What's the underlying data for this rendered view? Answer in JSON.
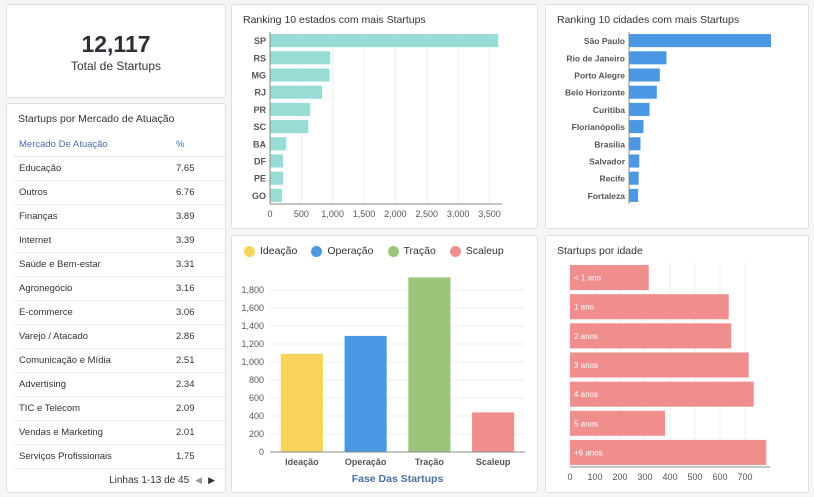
{
  "kpi": {
    "value": "12,117",
    "label": "Total de Startups"
  },
  "market_table": {
    "title": "Startups por Mercado de Atuação",
    "columns": [
      "Mercado De Atuação",
      "%"
    ],
    "rows": [
      [
        "Educação",
        "7.65"
      ],
      [
        "Outros",
        "6.76"
      ],
      [
        "Finanças",
        "3.89"
      ],
      [
        "Internet",
        "3.39"
      ],
      [
        "Saúde e Bem-estar",
        "3.31"
      ],
      [
        "Agronegócio",
        "3.16"
      ],
      [
        "E-commerce",
        "3.06"
      ],
      [
        "Varejo / Atacado",
        "2.86"
      ],
      [
        "Comunicação e Mídia",
        "2.51"
      ],
      [
        "Advertising",
        "2.34"
      ],
      [
        "TIC e Telecom",
        "2.09"
      ],
      [
        "Vendas e Marketing",
        "2.01"
      ],
      [
        "Serviços Profissionais",
        "1.75"
      ]
    ],
    "pager_label": "Linhas 1-13 de 45",
    "prev_icon": "chevron-left-icon",
    "next_icon": "chevron-right-icon"
  },
  "chart_data": [
    {
      "id": "states",
      "type": "bar",
      "orientation": "horizontal",
      "title": "Ranking 10 estados com mais Startups",
      "categories": [
        "SP",
        "RS",
        "MG",
        "RJ",
        "PR",
        "SC",
        "BA",
        "DF",
        "PE",
        "GO"
      ],
      "values": [
        3640,
        960,
        950,
        830,
        640,
        610,
        260,
        210,
        210,
        190
      ],
      "xlim": [
        0,
        3700
      ],
      "ticks": [
        0,
        500,
        1000,
        1500,
        2000,
        2500,
        3000,
        3500
      ],
      "tick_labels": [
        "0",
        "500",
        "1,000",
        "1,500",
        "2,000",
        "2,500",
        "3,000",
        "3,500"
      ],
      "color": "#98dcd6",
      "grid": true
    },
    {
      "id": "cities",
      "type": "bar",
      "orientation": "horizontal",
      "title": "Ranking 10 cidades com mais Startups",
      "categories": [
        "São Paulo",
        "Rio de Janeiro",
        "Porto Alegre",
        "Belo Horizonte",
        "Curitiba",
        "Florianópolis",
        "Brasília",
        "Salvador",
        "Recife",
        "Fortaleza"
      ],
      "values": [
        2350,
        620,
        510,
        460,
        340,
        240,
        190,
        170,
        160,
        150
      ],
      "xlim": [
        0,
        2350
      ],
      "color": "#4a98e3"
    },
    {
      "id": "phase",
      "type": "bar",
      "orientation": "vertical",
      "xlabel": "Fase Das Startups",
      "categories": [
        "Ideação",
        "Operação",
        "Tração",
        "Scaleup"
      ],
      "series": [
        {
          "name": "Ideação",
          "color": "#f7d35c"
        },
        {
          "name": "Operação",
          "color": "#4a98e3"
        },
        {
          "name": "Tração",
          "color": "#9cc47a"
        },
        {
          "name": "Scaleup",
          "color": "#f08e8e"
        }
      ],
      "values": [
        1090,
        1290,
        1940,
        440
      ],
      "ylim": [
        0,
        2000
      ],
      "ticks": [
        0,
        200,
        400,
        600,
        800,
        1000,
        1200,
        1400,
        1600,
        1800
      ],
      "tick_labels": [
        "0",
        "200",
        "400",
        "600",
        "800",
        "1,000",
        "1,200",
        "1,400",
        "1,600",
        "1,800"
      ],
      "grid": true,
      "legend": "top-left"
    },
    {
      "id": "age",
      "type": "bar",
      "orientation": "horizontal",
      "title": "Startups por idade",
      "categories": [
        "< 1 ano",
        "1 ano",
        "2 anos",
        "3 anos",
        "4 anos",
        "5 anos",
        "+6 anos"
      ],
      "values": [
        315,
        635,
        645,
        715,
        735,
        380,
        785
      ],
      "xlim": [
        0,
        800
      ],
      "ticks": [
        0,
        100,
        200,
        300,
        400,
        500,
        600,
        700
      ],
      "tick_labels": [
        "0",
        "100",
        "200",
        "300",
        "400",
        "500",
        "600",
        "700"
      ],
      "color": "#f08e8e",
      "grid": true
    }
  ]
}
